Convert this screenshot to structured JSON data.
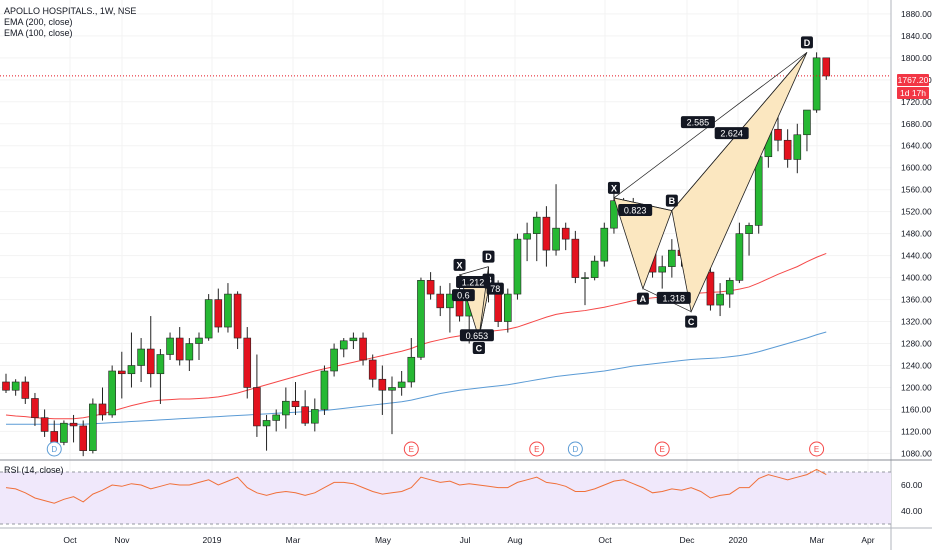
{
  "header": {
    "symbol_line": "APOLLO HOSPITALS., 1W, NSE",
    "ema200_label": "EMA (200, close)",
    "ema100_label": "EMA (100, close)"
  },
  "rsi": {
    "label": "RSI (14, close)",
    "ticks": [
      "60.00",
      "40.00"
    ]
  },
  "last_price": {
    "value": "1767.20",
    "countdown": "1d 17h",
    "color": "#f23645"
  },
  "colors": {
    "up": "#26b833",
    "down": "#e3121e",
    "ema100": "#f54848",
    "ema200": "#5b9bd5",
    "pattern_fill": "#fbe7c0",
    "rsi_line": "#f0703a",
    "rsi_band": "#f0e8fb"
  },
  "chart_data": {
    "type": "candlestick",
    "y_axis_ticks": [
      1880,
      1840,
      1800,
      1760,
      1720,
      1680,
      1640,
      1600,
      1560,
      1520,
      1480,
      1440,
      1400,
      1360,
      1320,
      1280,
      1240,
      1200,
      1160,
      1120,
      1080
    ],
    "ylim": [
      1068,
      1898
    ],
    "x_axis_labels": [
      "Oct",
      "Nov",
      "2019",
      "Mar",
      "May",
      "Jul",
      "Aug",
      "Oct",
      "Dec",
      "2020",
      "Mar",
      "Apr"
    ],
    "candles": [
      [
        1210,
        1225,
        1190,
        1195
      ],
      [
        1195,
        1215,
        1185,
        1210
      ],
      [
        1210,
        1220,
        1170,
        1180
      ],
      [
        1180,
        1190,
        1130,
        1145
      ],
      [
        1145,
        1160,
        1110,
        1120
      ],
      [
        1120,
        1140,
        1090,
        1100
      ],
      [
        1100,
        1140,
        1095,
        1135
      ],
      [
        1135,
        1150,
        1100,
        1130
      ],
      [
        1130,
        1140,
        1075,
        1085
      ],
      [
        1085,
        1180,
        1080,
        1170
      ],
      [
        1170,
        1200,
        1140,
        1150
      ],
      [
        1150,
        1240,
        1145,
        1230
      ],
      [
        1230,
        1265,
        1180,
        1225
      ],
      [
        1225,
        1300,
        1200,
        1240
      ],
      [
        1240,
        1290,
        1210,
        1270
      ],
      [
        1270,
        1330,
        1200,
        1225
      ],
      [
        1225,
        1270,
        1170,
        1260
      ],
      [
        1260,
        1300,
        1250,
        1290
      ],
      [
        1290,
        1310,
        1240,
        1250
      ],
      [
        1250,
        1290,
        1230,
        1280
      ],
      [
        1280,
        1300,
        1250,
        1290
      ],
      [
        1290,
        1370,
        1285,
        1360
      ],
      [
        1360,
        1380,
        1300,
        1310
      ],
      [
        1310,
        1390,
        1300,
        1370
      ],
      [
        1370,
        1375,
        1270,
        1290
      ],
      [
        1290,
        1310,
        1180,
        1200
      ],
      [
        1200,
        1260,
        1110,
        1130
      ],
      [
        1130,
        1150,
        1085,
        1140
      ],
      [
        1140,
        1160,
        1120,
        1150
      ],
      [
        1150,
        1200,
        1125,
        1175
      ],
      [
        1175,
        1210,
        1150,
        1165
      ],
      [
        1165,
        1195,
        1130,
        1135
      ],
      [
        1135,
        1180,
        1120,
        1160
      ],
      [
        1160,
        1240,
        1150,
        1230
      ],
      [
        1230,
        1280,
        1220,
        1270
      ],
      [
        1270,
        1290,
        1255,
        1285
      ],
      [
        1285,
        1300,
        1270,
        1290
      ],
      [
        1290,
        1300,
        1240,
        1250
      ],
      [
        1250,
        1260,
        1200,
        1215
      ],
      [
        1215,
        1240,
        1150,
        1195
      ],
      [
        1195,
        1220,
        1115,
        1200
      ],
      [
        1200,
        1230,
        1185,
        1210
      ],
      [
        1210,
        1290,
        1200,
        1255
      ],
      [
        1255,
        1400,
        1250,
        1395
      ],
      [
        1395,
        1410,
        1360,
        1370
      ],
      [
        1370,
        1385,
        1330,
        1345
      ],
      [
        1345,
        1390,
        1300,
        1370
      ],
      [
        1370,
        1400,
        1320,
        1330
      ],
      [
        1330,
        1400,
        1280,
        1380
      ],
      [
        1380,
        1390,
        1340,
        1372
      ],
      [
        1372,
        1385,
        1355,
        1378
      ],
      [
        1378,
        1395,
        1310,
        1320
      ],
      [
        1320,
        1380,
        1300,
        1370
      ],
      [
        1370,
        1480,
        1360,
        1470
      ],
      [
        1470,
        1500,
        1430,
        1480
      ],
      [
        1480,
        1520,
        1430,
        1510
      ],
      [
        1510,
        1530,
        1420,
        1450
      ],
      [
        1450,
        1570,
        1440,
        1490
      ],
      [
        1490,
        1500,
        1450,
        1470
      ],
      [
        1470,
        1485,
        1390,
        1400
      ],
      [
        1400,
        1410,
        1350,
        1400
      ],
      [
        1400,
        1440,
        1395,
        1430
      ],
      [
        1430,
        1500,
        1420,
        1490
      ],
      [
        1490,
        1555,
        1480,
        1540
      ],
      [
        1540,
        1545,
        1500,
        1530
      ],
      [
        1530,
        1545,
        1470,
        1480
      ],
      [
        1480,
        1500,
        1410,
        1450
      ],
      [
        1450,
        1460,
        1400,
        1410
      ],
      [
        1410,
        1440,
        1380,
        1420
      ],
      [
        1420,
        1470,
        1400,
        1450
      ],
      [
        1450,
        1460,
        1420,
        1440
      ],
      [
        1440,
        1470,
        1410,
        1470
      ],
      [
        1470,
        1490,
        1395,
        1410
      ],
      [
        1410,
        1420,
        1340,
        1350
      ],
      [
        1350,
        1390,
        1330,
        1370
      ],
      [
        1370,
        1400,
        1345,
        1395
      ],
      [
        1395,
        1500,
        1390,
        1480
      ],
      [
        1480,
        1500,
        1440,
        1495
      ],
      [
        1495,
        1630,
        1480,
        1620
      ],
      [
        1620,
        1690,
        1600,
        1670
      ],
      [
        1670,
        1700,
        1630,
        1650
      ],
      [
        1650,
        1670,
        1600,
        1615
      ],
      [
        1615,
        1680,
        1590,
        1660
      ],
      [
        1660,
        1700,
        1630,
        1705
      ],
      [
        1705,
        1810,
        1700,
        1800
      ],
      [
        1800,
        1800,
        1760,
        1767
      ]
    ],
    "ema100": [
      1150,
      1148,
      1147,
      1145,
      1144,
      1143,
      1143,
      1143,
      1145,
      1148,
      1152,
      1157,
      1162,
      1167,
      1171,
      1175,
      1177,
      1178,
      1179,
      1179,
      1180,
      1181,
      1183,
      1186,
      1190,
      1195,
      1200,
      1205,
      1210,
      1215,
      1220,
      1225,
      1230,
      1234,
      1238,
      1242,
      1246,
      1250,
      1254,
      1258,
      1262,
      1266,
      1271,
      1278,
      1283,
      1287,
      1291,
      1294,
      1297,
      1300,
      1302,
      1304,
      1306,
      1310,
      1316,
      1322,
      1328,
      1333,
      1336,
      1338,
      1340,
      1343,
      1346,
      1350,
      1354,
      1358,
      1361,
      1363,
      1365,
      1367,
      1369,
      1371,
      1372,
      1373,
      1374,
      1376,
      1379,
      1383,
      1390,
      1398,
      1406,
      1413,
      1420,
      1429,
      1437,
      1444
    ],
    "ema200": [
      1133,
      1133,
      1133,
      1133,
      1133,
      1133,
      1133,
      1133,
      1133,
      1134,
      1135,
      1136,
      1137,
      1138,
      1139,
      1140,
      1141,
      1142,
      1143,
      1144,
      1145,
      1146,
      1147,
      1148,
      1149,
      1150,
      1151,
      1152,
      1153,
      1154,
      1155,
      1156,
      1157,
      1158,
      1160,
      1162,
      1164,
      1166,
      1168,
      1170,
      1172,
      1174,
      1177,
      1181,
      1185,
      1189,
      1192,
      1195,
      1197,
      1199,
      1201,
      1203,
      1205,
      1208,
      1211,
      1214,
      1217,
      1220,
      1222,
      1224,
      1226,
      1228,
      1230,
      1233,
      1236,
      1239,
      1241,
      1243,
      1245,
      1247,
      1249,
      1251,
      1252,
      1253,
      1254,
      1256,
      1258,
      1261,
      1265,
      1270,
      1275,
      1280,
      1285,
      1290,
      1296,
      1301
    ],
    "events": [
      {
        "letter": "D",
        "bar": 5,
        "color": "#5b9bd5"
      },
      {
        "letter": "E",
        "bar": 42,
        "color": "#f54848"
      },
      {
        "letter": "E",
        "bar": 55,
        "color": "#f54848"
      },
      {
        "letter": "D",
        "bar": 59,
        "color": "#5b9bd5"
      },
      {
        "letter": "E",
        "bar": 68,
        "color": "#f54848"
      },
      {
        "letter": "E",
        "bar": 84,
        "color": "#f54848"
      }
    ],
    "pattern_small": {
      "points": [
        {
          "label": "X",
          "bar": 47,
          "price": 1405
        },
        {
          "label": "A",
          "bar": 49,
          "price": 1290
        },
        {
          "label": "B",
          "bar": 50,
          "price": 1378
        },
        {
          "label": "C",
          "bar": 49,
          "price": 1290
        },
        {
          "label": "D",
          "bar": 50,
          "price": 1420
        }
      ],
      "ratios": [
        {
          "text": "1.212",
          "bar": 48.4,
          "price": 1392
        },
        {
          "text": "0.6",
          "bar": 47.4,
          "price": 1368
        },
        {
          "text": "78",
          "bar": 50.7,
          "price": 1380
        },
        {
          "text": "0.653",
          "bar": 48.8,
          "price": 1295
        }
      ]
    },
    "pattern_large": {
      "points": [
        {
          "label": "X",
          "bar": 63,
          "price": 1545
        },
        {
          "label": "A",
          "bar": 66,
          "price": 1380
        },
        {
          "label": "B",
          "bar": 69,
          "price": 1522
        },
        {
          "label": "C",
          "bar": 71,
          "price": 1338
        },
        {
          "label": "D",
          "bar": 83,
          "price": 1810
        }
      ],
      "ratios": [
        {
          "text": "0.823",
          "bar": 65.2,
          "price": 1523
        },
        {
          "text": "1.318",
          "bar": 69.2,
          "price": 1363
        },
        {
          "text": "2.585",
          "bar": 71.7,
          "price": 1683
        },
        {
          "text": "2.624",
          "bar": 75.2,
          "price": 1663
        }
      ]
    },
    "rsi_values": [
      58,
      57,
      54,
      50,
      48,
      46,
      49,
      51,
      47,
      53,
      56,
      60,
      59,
      61,
      60,
      57,
      59,
      61,
      60,
      60,
      62,
      64,
      60,
      63,
      66,
      58,
      54,
      52,
      54,
      55,
      54,
      52,
      54,
      58,
      62,
      62,
      61,
      58,
      55,
      53,
      54,
      55,
      58,
      66,
      64,
      62,
      63,
      60,
      61,
      60,
      59,
      58,
      58,
      62,
      64,
      66,
      62,
      61,
      59,
      55,
      55,
      57,
      60,
      63,
      64,
      61,
      58,
      54,
      55,
      57,
      56,
      58,
      55,
      50,
      52,
      53,
      58,
      58,
      65,
      68,
      66,
      64,
      66,
      68,
      72,
      68
    ]
  }
}
